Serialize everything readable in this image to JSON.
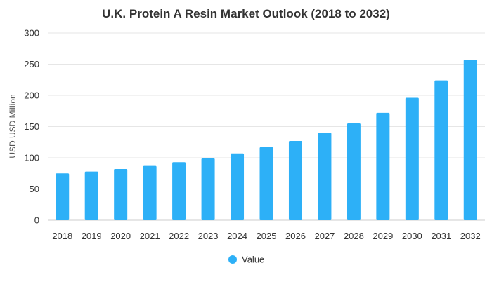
{
  "chart_data": {
    "type": "bar",
    "title": "U.K. Protein A Resin Market Outlook (2018 to 2032)",
    "xlabel": "",
    "ylabel": "USD USD Million",
    "categories": [
      "2018",
      "2019",
      "2020",
      "2021",
      "2022",
      "2023",
      "2024",
      "2025",
      "2026",
      "2027",
      "2028",
      "2029",
      "2030",
      "2031",
      "2032"
    ],
    "series": [
      {
        "name": "Value",
        "color": "#2DB0F7",
        "values": [
          75,
          78,
          82,
          87,
          93,
          99,
          107,
          117,
          127,
          140,
          155,
          172,
          196,
          224,
          257
        ]
      }
    ],
    "ylim": [
      0,
      300
    ],
    "yticks": [
      0,
      50,
      100,
      150,
      200,
      250,
      300
    ],
    "grid": true,
    "legend_position": "bottom"
  }
}
